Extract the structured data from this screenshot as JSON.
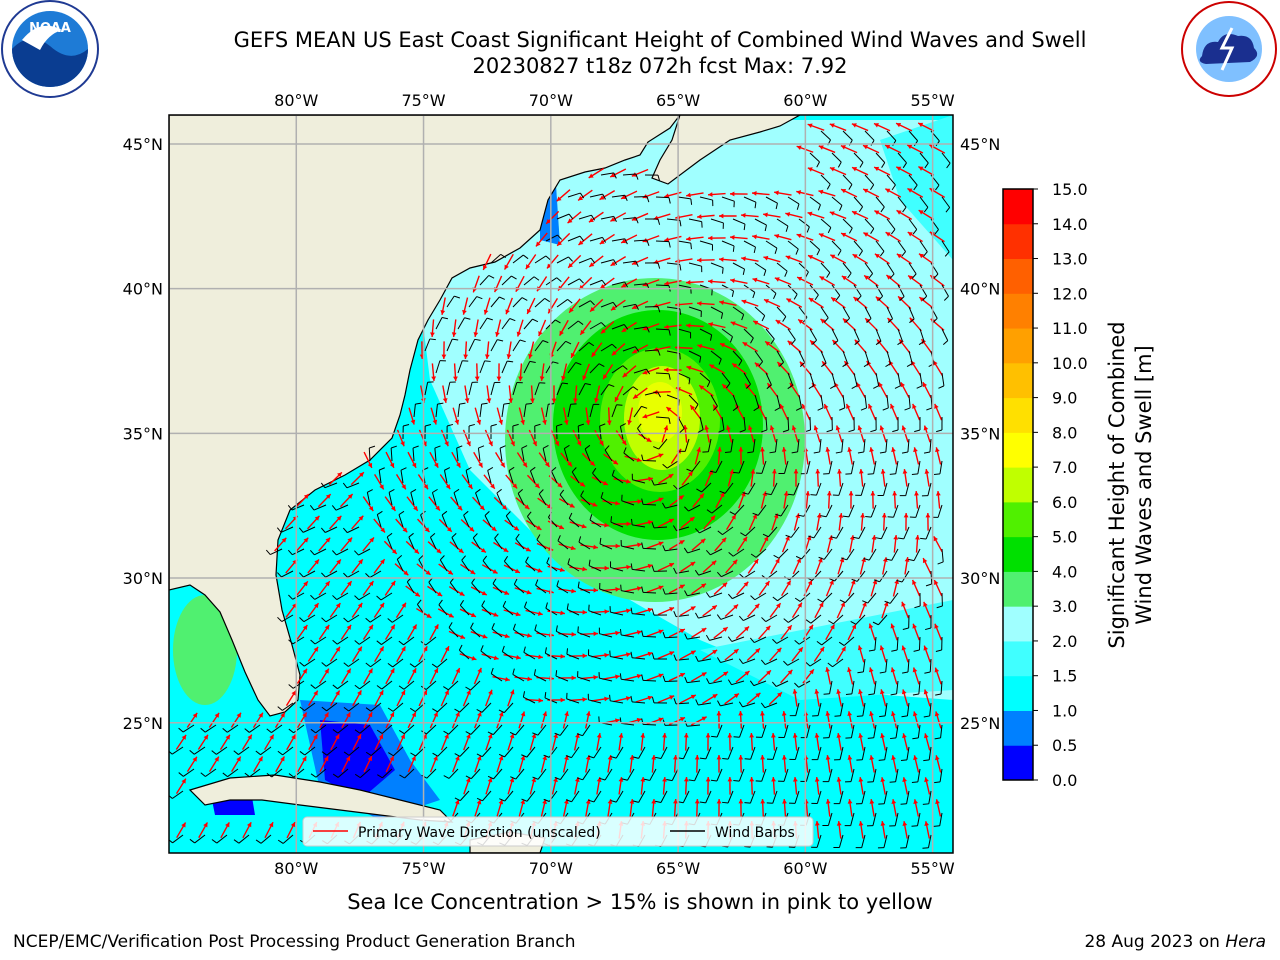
{
  "header": {
    "title_line1": "GEFS MEAN US East Coast Significant Height of Combined Wind Waves and Swell",
    "title_line2": "20230827 t18z 072h fcst   Max: 7.92"
  },
  "note": "Sea Ice Concentration > 15% is shown in pink to yellow",
  "footer": {
    "left": "NCEP/EMC/Verification Post Processing Product Generation Branch",
    "right_date": "28 Aug 2023 on ",
    "right_machine": "Hera"
  },
  "logos": {
    "left": "NOAA",
    "right": "NATIONAL WEATHER SERVICE"
  },
  "map": {
    "lon_labels": [
      "80°W",
      "75°W",
      "70°W",
      "65°W",
      "60°W",
      "55°W"
    ],
    "lon_values": [
      -80,
      -75,
      -70,
      -65,
      -60,
      -55
    ],
    "lat_labels": [
      "45°N",
      "40°N",
      "35°N",
      "30°N",
      "25°N"
    ],
    "lat_values": [
      45,
      40,
      35,
      30,
      25
    ],
    "lon_range": [
      -85,
      -54.2
    ],
    "lat_range": [
      20.5,
      46
    ],
    "storm_center": {
      "lon": -66,
      "lat": 35.2
    },
    "colors": {
      "land": "#efeedc",
      "grid": "#b0b0b0",
      "wave_arrow": "#ff0000",
      "barb": "#000000"
    }
  },
  "legend": {
    "wave_label": "Primary Wave Direction (unscaled)",
    "barb_label": "Wind Barbs"
  },
  "colorbar": {
    "label_line1": "Significant Height of Combined",
    "label_line2": "Wind Waves and Swell [m]",
    "ticks": [
      "0.0",
      "0.5",
      "1.0",
      "1.5",
      "2.0",
      "3.0",
      "4.0",
      "5.0",
      "6.0",
      "7.0",
      "8.0",
      "9.0",
      "10.0",
      "11.0",
      "12.0",
      "13.0",
      "14.0",
      "15.0"
    ],
    "colors": [
      "#0000ff",
      "#0080ff",
      "#00ffff",
      "#40ffff",
      "#a0ffff",
      "#50f070",
      "#00e000",
      "#50f000",
      "#c0ff00",
      "#ffff00",
      "#ffe000",
      "#ffc000",
      "#ffa000",
      "#ff8000",
      "#ff6000",
      "#ff3000",
      "#ff0000"
    ]
  },
  "chart_data": {
    "type": "heatmap",
    "title": "GEFS MEAN US East Coast Significant Height of Combined Wind Waves and Swell",
    "subtitle": "20230827 t18z 072h fcst   Max: 7.92",
    "value_max": 7.92,
    "levels": [
      0.0,
      0.5,
      1.0,
      1.5,
      2.0,
      3.0,
      4.0,
      5.0,
      6.0,
      7.0,
      8.0,
      9.0,
      10.0,
      11.0,
      12.0,
      13.0,
      14.0,
      15.0
    ],
    "units": "m",
    "x_range": [
      -85,
      -54.2
    ],
    "y_range": [
      20.5,
      46
    ]
  }
}
